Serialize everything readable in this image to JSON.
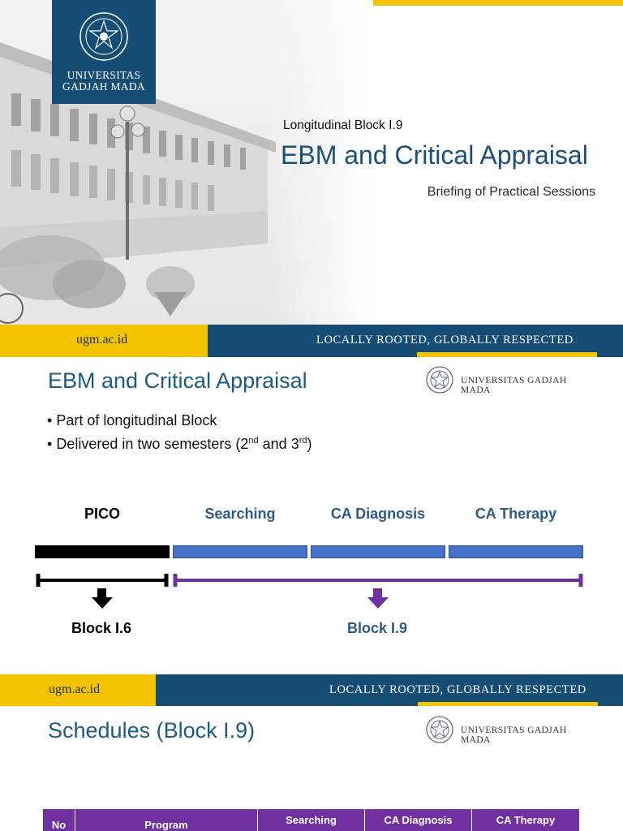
{
  "slide1": {
    "logo_text": [
      "UNIVERSITAS",
      "GADJAH MADA"
    ],
    "subtitle": "Longitudinal Block I.9",
    "title": "EBM and Critical Appraisal",
    "briefing": "Briefing of Practical Sessions",
    "footer": {
      "url": "ugm.ac.id",
      "motto": "LOCALLY ROOTED, GLOBALLY RESPECTED"
    }
  },
  "slide2": {
    "title": "EBM and Critical Appraisal",
    "logo_name": "UNIVERSITAS GADJAH MADA",
    "bullets": {
      "b1": "Part of longitudinal Block",
      "b2_pre": "Delivered in two semesters (2",
      "b2_sup1": "nd",
      "b2_mid": " and 3",
      "b2_sup2": "rd",
      "b2_post": ")"
    },
    "phases": [
      "PICO",
      "Searching",
      "CA Diagnosis",
      "CA Therapy"
    ],
    "blocks": [
      "Block I.6",
      "Block I.9"
    ],
    "footer": {
      "url": "ugm.ac.id",
      "motto": "LOCALLY ROOTED, GLOBALLY RESPECTED"
    }
  },
  "slide3": {
    "title": "Schedules (Block I.9)",
    "logo_name": "UNIVERSITAS GADJAH MADA",
    "table_headers": [
      "No",
      "Program",
      "Searching",
      "CA Diagnosis",
      "CA Therapy"
    ]
  },
  "colors": {
    "navy": "#154d74",
    "gold": "#f5c400",
    "title_blue": "#1b5c85",
    "purple": "#7030a0",
    "bar_blue": "#4472c4"
  }
}
